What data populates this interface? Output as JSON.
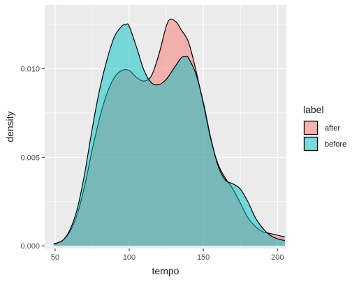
{
  "chart_data": {
    "type": "area",
    "xlabel": "tempo",
    "ylabel": "density",
    "xlim": [
      43,
      206
    ],
    "ylim": [
      -0.00015,
      0.0136
    ],
    "x_ticks": [
      50,
      100,
      150,
      200
    ],
    "x_tick_labels": [
      "50",
      "100",
      "150",
      "200"
    ],
    "y_ticks": [
      0,
      0.005,
      0.01
    ],
    "y_tick_labels": [
      "0.000",
      "0.005",
      "0.010"
    ],
    "grid": true,
    "background": "#ebebeb",
    "legend": {
      "title": "label",
      "position": "right"
    },
    "series": [
      {
        "name": "after",
        "color": "#f8766d",
        "x": [
          49,
          55,
          60,
          65,
          70,
          75,
          80,
          85,
          90,
          95,
          100,
          105,
          110,
          115,
          120,
          125,
          128,
          132,
          135,
          140,
          145,
          150,
          155,
          160,
          165,
          170,
          175,
          180,
          185,
          190,
          195,
          200,
          205
        ],
        "y": [
          0.0001,
          0.0003,
          0.0008,
          0.0018,
          0.0034,
          0.0054,
          0.0072,
          0.0086,
          0.0095,
          0.0099,
          0.0099,
          0.0095,
          0.0093,
          0.0096,
          0.0108,
          0.0124,
          0.0128,
          0.0126,
          0.0122,
          0.0115,
          0.0099,
          0.008,
          0.006,
          0.0046,
          0.0038,
          0.0032,
          0.0024,
          0.0016,
          0.0011,
          0.0008,
          0.0007,
          0.0006,
          0.0005
        ]
      },
      {
        "name": "before",
        "color": "#00bfc4",
        "x": [
          49,
          55,
          60,
          65,
          70,
          75,
          80,
          85,
          90,
          95,
          98,
          100,
          105,
          110,
          115,
          120,
          125,
          130,
          135,
          138,
          140,
          145,
          150,
          155,
          160,
          165,
          170,
          175,
          180,
          185,
          190,
          195,
          200,
          205
        ],
        "y": [
          0.0001,
          0.0003,
          0.0009,
          0.0021,
          0.0041,
          0.0066,
          0.0088,
          0.0105,
          0.0118,
          0.0124,
          0.0125,
          0.0124,
          0.0112,
          0.0099,
          0.0092,
          0.0091,
          0.0094,
          0.01,
          0.0106,
          0.0107,
          0.0106,
          0.0097,
          0.0081,
          0.0061,
          0.0045,
          0.0037,
          0.0035,
          0.0032,
          0.0025,
          0.0016,
          0.001,
          0.0006,
          0.0004,
          0.0003
        ]
      }
    ]
  }
}
